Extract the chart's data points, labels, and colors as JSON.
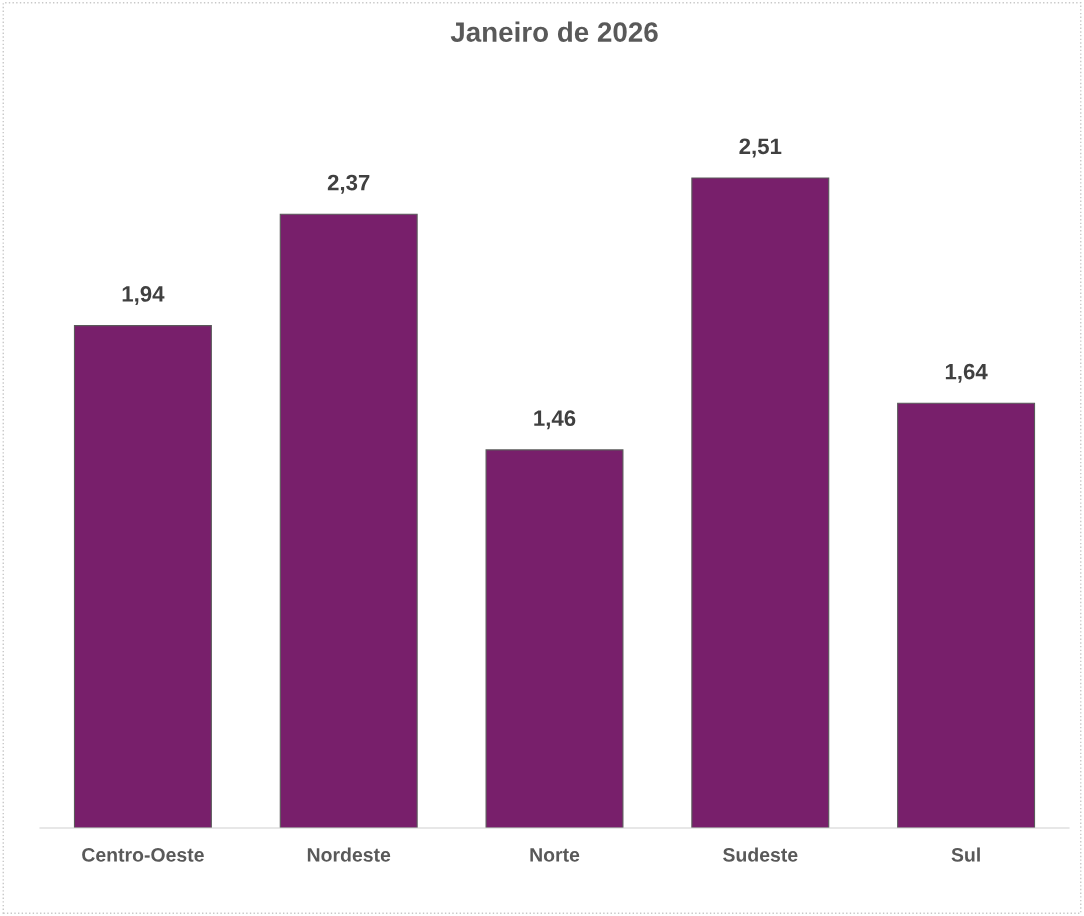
{
  "chart_data": {
    "type": "bar",
    "title": "Janeiro de 2026",
    "categories": [
      "Centro-Oeste",
      "Nordeste",
      "Norte",
      "Sudeste",
      "Sul"
    ],
    "values": [
      1.94,
      2.37,
      1.46,
      2.51,
      1.64
    ],
    "value_labels": [
      "1,94",
      "2,37",
      "1,46",
      "2,51",
      "1,64"
    ],
    "color": "#781f6b",
    "grid": false,
    "legend": false,
    "tick_labels": "x"
  }
}
